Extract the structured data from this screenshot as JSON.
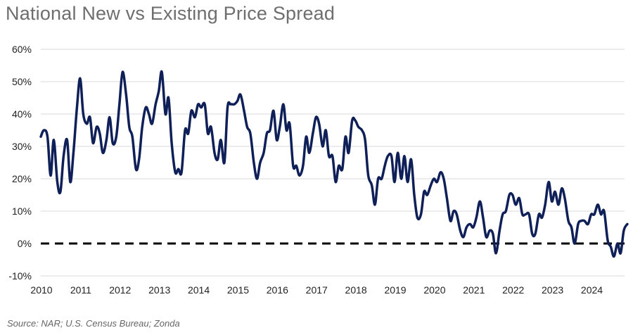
{
  "title": "National New vs Existing Price Spread",
  "source": "Source: NAR; U.S. Census Bureau; Zonda",
  "colors": {
    "line": "#0f1f57",
    "grid": "#d9d9d9",
    "zero_line": "#000000"
  },
  "chart_data": {
    "type": "line",
    "title": "National New vs Existing Price Spread",
    "xlabel": "",
    "ylabel": "",
    "xlim": [
      2010,
      2024.85
    ],
    "ylim": [
      -10,
      60
    ],
    "yticks": [
      -10,
      0,
      10,
      20,
      30,
      40,
      50,
      60
    ],
    "ytick_labels": [
      "-10%",
      "0%",
      "10%",
      "20%",
      "30%",
      "40%",
      "50%",
      "60%"
    ],
    "xticks": [
      2010,
      2011,
      2012,
      2013,
      2014,
      2015,
      2016,
      2017,
      2018,
      2019,
      2020,
      2021,
      2022,
      2023,
      2024
    ],
    "xtick_labels": [
      "2010",
      "2011",
      "2012",
      "2013",
      "2014",
      "2015",
      "2016",
      "2017",
      "2018",
      "2019",
      "2020",
      "2021",
      "2022",
      "2023",
      "2024"
    ],
    "reference_line": {
      "y": 0,
      "style": "dashed"
    },
    "grid": "horizontal",
    "series": [
      {
        "name": "New vs Existing Price Spread",
        "points": [
          [
            2010.0,
            33
          ],
          [
            2010.08,
            35
          ],
          [
            2010.17,
            33
          ],
          [
            2010.25,
            21
          ],
          [
            2010.33,
            32
          ],
          [
            2010.42,
            19
          ],
          [
            2010.5,
            16
          ],
          [
            2010.58,
            27
          ],
          [
            2010.67,
            32
          ],
          [
            2010.75,
            19
          ],
          [
            2010.83,
            28
          ],
          [
            2010.92,
            42
          ],
          [
            2011.0,
            51
          ],
          [
            2011.08,
            40
          ],
          [
            2011.17,
            37
          ],
          [
            2011.25,
            39
          ],
          [
            2011.33,
            31
          ],
          [
            2011.42,
            36
          ],
          [
            2011.5,
            34
          ],
          [
            2011.58,
            28
          ],
          [
            2011.67,
            32
          ],
          [
            2011.75,
            39
          ],
          [
            2011.83,
            31
          ],
          [
            2011.92,
            33
          ],
          [
            2012.0,
            43
          ],
          [
            2012.08,
            53
          ],
          [
            2012.17,
            46
          ],
          [
            2012.25,
            36
          ],
          [
            2012.33,
            33
          ],
          [
            2012.42,
            23
          ],
          [
            2012.5,
            26
          ],
          [
            2012.58,
            36
          ],
          [
            2012.67,
            42
          ],
          [
            2012.75,
            40
          ],
          [
            2012.83,
            37
          ],
          [
            2012.92,
            43
          ],
          [
            2013.0,
            47
          ],
          [
            2013.08,
            53
          ],
          [
            2013.17,
            40
          ],
          [
            2013.25,
            45
          ],
          [
            2013.33,
            31
          ],
          [
            2013.42,
            22
          ],
          [
            2013.5,
            23
          ],
          [
            2013.58,
            22
          ],
          [
            2013.67,
            35
          ],
          [
            2013.75,
            34
          ],
          [
            2013.83,
            41
          ],
          [
            2013.92,
            39
          ],
          [
            2014.0,
            43
          ],
          [
            2014.08,
            42
          ],
          [
            2014.17,
            43
          ],
          [
            2014.25,
            34
          ],
          [
            2014.33,
            36
          ],
          [
            2014.42,
            28
          ],
          [
            2014.5,
            26
          ],
          [
            2014.58,
            32
          ],
          [
            2014.67,
            25
          ],
          [
            2014.75,
            42
          ],
          [
            2014.83,
            43
          ],
          [
            2014.92,
            43
          ],
          [
            2015.0,
            44
          ],
          [
            2015.08,
            46
          ],
          [
            2015.17,
            41
          ],
          [
            2015.25,
            36
          ],
          [
            2015.33,
            34
          ],
          [
            2015.42,
            25
          ],
          [
            2015.5,
            20
          ],
          [
            2015.58,
            25
          ],
          [
            2015.67,
            28
          ],
          [
            2015.75,
            34
          ],
          [
            2015.83,
            35
          ],
          [
            2015.92,
            41
          ],
          [
            2016.0,
            32
          ],
          [
            2016.08,
            36
          ],
          [
            2016.17,
            43
          ],
          [
            2016.25,
            35
          ],
          [
            2016.33,
            37
          ],
          [
            2016.42,
            24
          ],
          [
            2016.5,
            24
          ],
          [
            2016.58,
            21
          ],
          [
            2016.67,
            24
          ],
          [
            2016.75,
            33
          ],
          [
            2016.83,
            28
          ],
          [
            2016.92,
            34
          ],
          [
            2017.0,
            39
          ],
          [
            2017.08,
            37
          ],
          [
            2017.17,
            30
          ],
          [
            2017.25,
            35
          ],
          [
            2017.33,
            27
          ],
          [
            2017.42,
            27
          ],
          [
            2017.5,
            19
          ],
          [
            2017.58,
            24
          ],
          [
            2017.67,
            23
          ],
          [
            2017.75,
            33
          ],
          [
            2017.83,
            28
          ],
          [
            2017.92,
            38
          ],
          [
            2018.0,
            38
          ],
          [
            2018.08,
            36
          ],
          [
            2018.17,
            35
          ],
          [
            2018.25,
            32
          ],
          [
            2018.33,
            21
          ],
          [
            2018.42,
            18
          ],
          [
            2018.5,
            12
          ],
          [
            2018.58,
            20
          ],
          [
            2018.67,
            20
          ],
          [
            2018.75,
            24
          ],
          [
            2018.83,
            27
          ],
          [
            2018.92,
            27
          ],
          [
            2019.0,
            19
          ],
          [
            2019.08,
            28
          ],
          [
            2019.17,
            20
          ],
          [
            2019.25,
            27
          ],
          [
            2019.33,
            19
          ],
          [
            2019.42,
            26
          ],
          [
            2019.5,
            15
          ],
          [
            2019.58,
            8
          ],
          [
            2019.67,
            9
          ],
          [
            2019.75,
            16
          ],
          [
            2019.83,
            15
          ],
          [
            2019.92,
            18
          ],
          [
            2020.0,
            20
          ],
          [
            2020.08,
            19
          ],
          [
            2020.17,
            22
          ],
          [
            2020.25,
            20
          ],
          [
            2020.33,
            14
          ],
          [
            2020.42,
            7
          ],
          [
            2020.5,
            10
          ],
          [
            2020.58,
            9
          ],
          [
            2020.67,
            4
          ],
          [
            2020.75,
            2
          ],
          [
            2020.83,
            5
          ],
          [
            2020.92,
            6
          ],
          [
            2021.0,
            5
          ],
          [
            2021.08,
            8
          ],
          [
            2021.17,
            13
          ],
          [
            2021.25,
            8
          ],
          [
            2021.33,
            2
          ],
          [
            2021.42,
            4
          ],
          [
            2021.5,
            3
          ],
          [
            2021.58,
            -3
          ],
          [
            2021.67,
            4
          ],
          [
            2021.75,
            9
          ],
          [
            2021.83,
            10
          ],
          [
            2021.92,
            15
          ],
          [
            2022.0,
            15
          ],
          [
            2022.08,
            12
          ],
          [
            2022.17,
            14
          ],
          [
            2022.25,
            9
          ],
          [
            2022.33,
            9
          ],
          [
            2022.42,
            9
          ],
          [
            2022.5,
            3
          ],
          [
            2022.58,
            3
          ],
          [
            2022.67,
            9
          ],
          [
            2022.75,
            8
          ],
          [
            2022.83,
            12
          ],
          [
            2022.92,
            19
          ],
          [
            2023.0,
            13
          ],
          [
            2023.08,
            16
          ],
          [
            2023.17,
            12
          ],
          [
            2023.25,
            17
          ],
          [
            2023.33,
            14
          ],
          [
            2023.42,
            7
          ],
          [
            2023.5,
            5
          ],
          [
            2023.58,
            0
          ],
          [
            2023.67,
            6
          ],
          [
            2023.75,
            7
          ],
          [
            2023.83,
            7
          ],
          [
            2023.92,
            6
          ],
          [
            2024.0,
            9
          ],
          [
            2024.08,
            9
          ],
          [
            2024.17,
            12
          ],
          [
            2024.25,
            9
          ],
          [
            2024.33,
            10
          ],
          [
            2024.42,
            1
          ],
          [
            2024.5,
            -1
          ],
          [
            2024.58,
            -4
          ],
          [
            2024.67,
            0
          ],
          [
            2024.75,
            -3
          ],
          [
            2024.83,
            4
          ],
          [
            2024.92,
            6
          ]
        ]
      }
    ]
  }
}
